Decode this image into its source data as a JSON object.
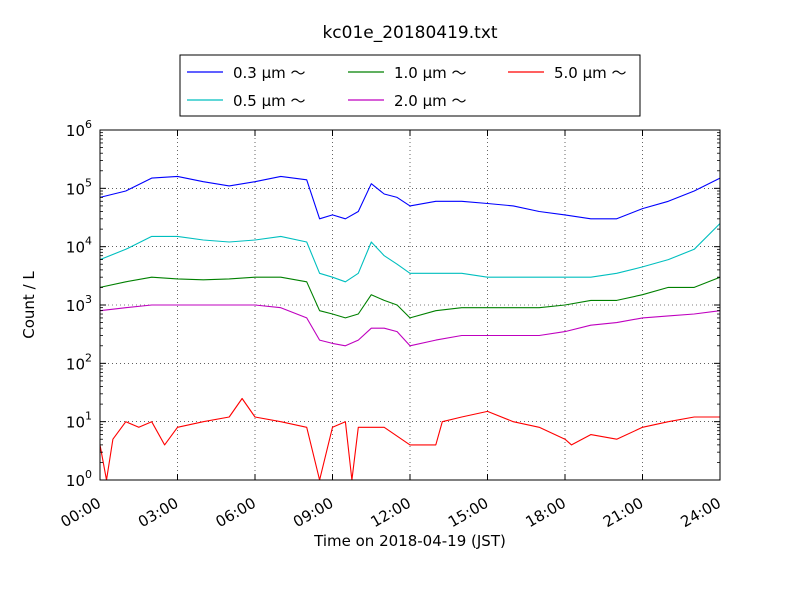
{
  "chart_data": {
    "type": "line",
    "title": "kc01e_20180419.txt",
    "xlabel": "Time on 2018-04-19 (JST)",
    "ylabel": "Count / L",
    "y_scale": "log",
    "ylim": [
      1,
      1000000
    ],
    "y_ticks": [
      {
        "value": 1,
        "base": "10",
        "exp": "0"
      },
      {
        "value": 10,
        "base": "10",
        "exp": "1"
      },
      {
        "value": 100,
        "base": "10",
        "exp": "2"
      },
      {
        "value": 1000,
        "base": "10",
        "exp": "3"
      },
      {
        "value": 10000,
        "base": "10",
        "exp": "4"
      },
      {
        "value": 100000,
        "base": "10",
        "exp": "5"
      },
      {
        "value": 1000000,
        "base": "10",
        "exp": "6"
      }
    ],
    "xlim": [
      "00:00",
      "24:00"
    ],
    "x_ticks": [
      "00:00",
      "03:00",
      "06:00",
      "09:00",
      "12:00",
      "15:00",
      "18:00",
      "21:00",
      "24:00"
    ],
    "grid": true,
    "legend_position": "top-center, above plot",
    "series": [
      {
        "name": "0.3 μm ～",
        "color": "#0000ff",
        "x": [
          "00:00",
          "01:00",
          "02:00",
          "03:00",
          "04:00",
          "05:00",
          "06:00",
          "07:00",
          "08:00",
          "08:30",
          "09:00",
          "09:30",
          "10:00",
          "10:30",
          "11:00",
          "11:30",
          "12:00",
          "13:00",
          "14:00",
          "15:00",
          "16:00",
          "17:00",
          "18:00",
          "19:00",
          "20:00",
          "21:00",
          "22:00",
          "23:00",
          "24:00"
        ],
        "values": [
          70000,
          90000,
          150000,
          160000,
          130000,
          110000,
          130000,
          160000,
          140000,
          30000,
          35000,
          30000,
          40000,
          120000,
          80000,
          70000,
          50000,
          60000,
          60000,
          55000,
          50000,
          40000,
          35000,
          30000,
          30000,
          45000,
          60000,
          90000,
          150000
        ]
      },
      {
        "name": "0.5 μm ～",
        "color": "#00bfbf",
        "x": [
          "00:00",
          "01:00",
          "02:00",
          "03:00",
          "04:00",
          "05:00",
          "06:00",
          "07:00",
          "08:00",
          "08:30",
          "09:00",
          "09:30",
          "10:00",
          "10:30",
          "11:00",
          "11:30",
          "12:00",
          "13:00",
          "14:00",
          "15:00",
          "16:00",
          "17:00",
          "18:00",
          "19:00",
          "20:00",
          "21:00",
          "22:00",
          "23:00",
          "24:00"
        ],
        "values": [
          6000,
          9000,
          15000,
          15000,
          13000,
          12000,
          13000,
          15000,
          12000,
          3500,
          3000,
          2500,
          3500,
          12000,
          7000,
          5000,
          3500,
          3500,
          3500,
          3000,
          3000,
          3000,
          3000,
          3000,
          3500,
          4500,
          6000,
          9000,
          25000
        ]
      },
      {
        "name": "1.0 μm ～",
        "color": "#008000",
        "x": [
          "00:00",
          "01:00",
          "02:00",
          "03:00",
          "04:00",
          "05:00",
          "06:00",
          "07:00",
          "08:00",
          "08:30",
          "09:00",
          "09:30",
          "10:00",
          "10:30",
          "11:00",
          "11:30",
          "12:00",
          "13:00",
          "14:00",
          "15:00",
          "16:00",
          "17:00",
          "18:00",
          "19:00",
          "20:00",
          "21:00",
          "22:00",
          "23:00",
          "24:00"
        ],
        "values": [
          2000,
          2500,
          3000,
          2800,
          2700,
          2800,
          3000,
          3000,
          2500,
          800,
          700,
          600,
          700,
          1500,
          1200,
          1000,
          600,
          800,
          900,
          900,
          900,
          900,
          1000,
          1200,
          1200,
          1500,
          2000,
          2000,
          3000
        ]
      },
      {
        "name": "2.0 μm ～",
        "color": "#bf00bf",
        "x": [
          "00:00",
          "01:00",
          "02:00",
          "03:00",
          "04:00",
          "05:00",
          "06:00",
          "07:00",
          "08:00",
          "08:30",
          "09:00",
          "09:30",
          "10:00",
          "10:30",
          "11:00",
          "11:30",
          "12:00",
          "13:00",
          "14:00",
          "15:00",
          "16:00",
          "17:00",
          "18:00",
          "19:00",
          "20:00",
          "21:00",
          "22:00",
          "23:00",
          "24:00"
        ],
        "values": [
          800,
          900,
          1000,
          1000,
          1000,
          1000,
          1000,
          900,
          600,
          250,
          220,
          200,
          250,
          400,
          400,
          350,
          200,
          250,
          300,
          300,
          300,
          300,
          350,
          450,
          500,
          600,
          650,
          700,
          800
        ]
      },
      {
        "name": "5.0 μm ～",
        "color": "#ff0000",
        "x": [
          "00:00",
          "00:15",
          "00:30",
          "01:00",
          "01:30",
          "02:00",
          "02:30",
          "03:00",
          "04:00",
          "05:00",
          "05:30",
          "06:00",
          "07:00",
          "08:00",
          "08:30",
          "09:00",
          "09:30",
          "09:45",
          "10:00",
          "11:00",
          "12:00",
          "13:00",
          "13:15",
          "14:00",
          "15:00",
          "16:00",
          "17:00",
          "18:00",
          "18:15",
          "19:00",
          "20:00",
          "21:00",
          "22:00",
          "23:00",
          "24:00"
        ],
        "values": [
          4,
          1,
          5,
          10,
          8,
          10,
          4,
          8,
          10,
          12,
          25,
          12,
          10,
          8,
          1,
          8,
          10,
          1,
          8,
          8,
          4,
          4,
          10,
          12,
          15,
          10,
          8,
          5,
          4,
          6,
          5,
          8,
          10,
          12,
          12
        ]
      }
    ]
  }
}
